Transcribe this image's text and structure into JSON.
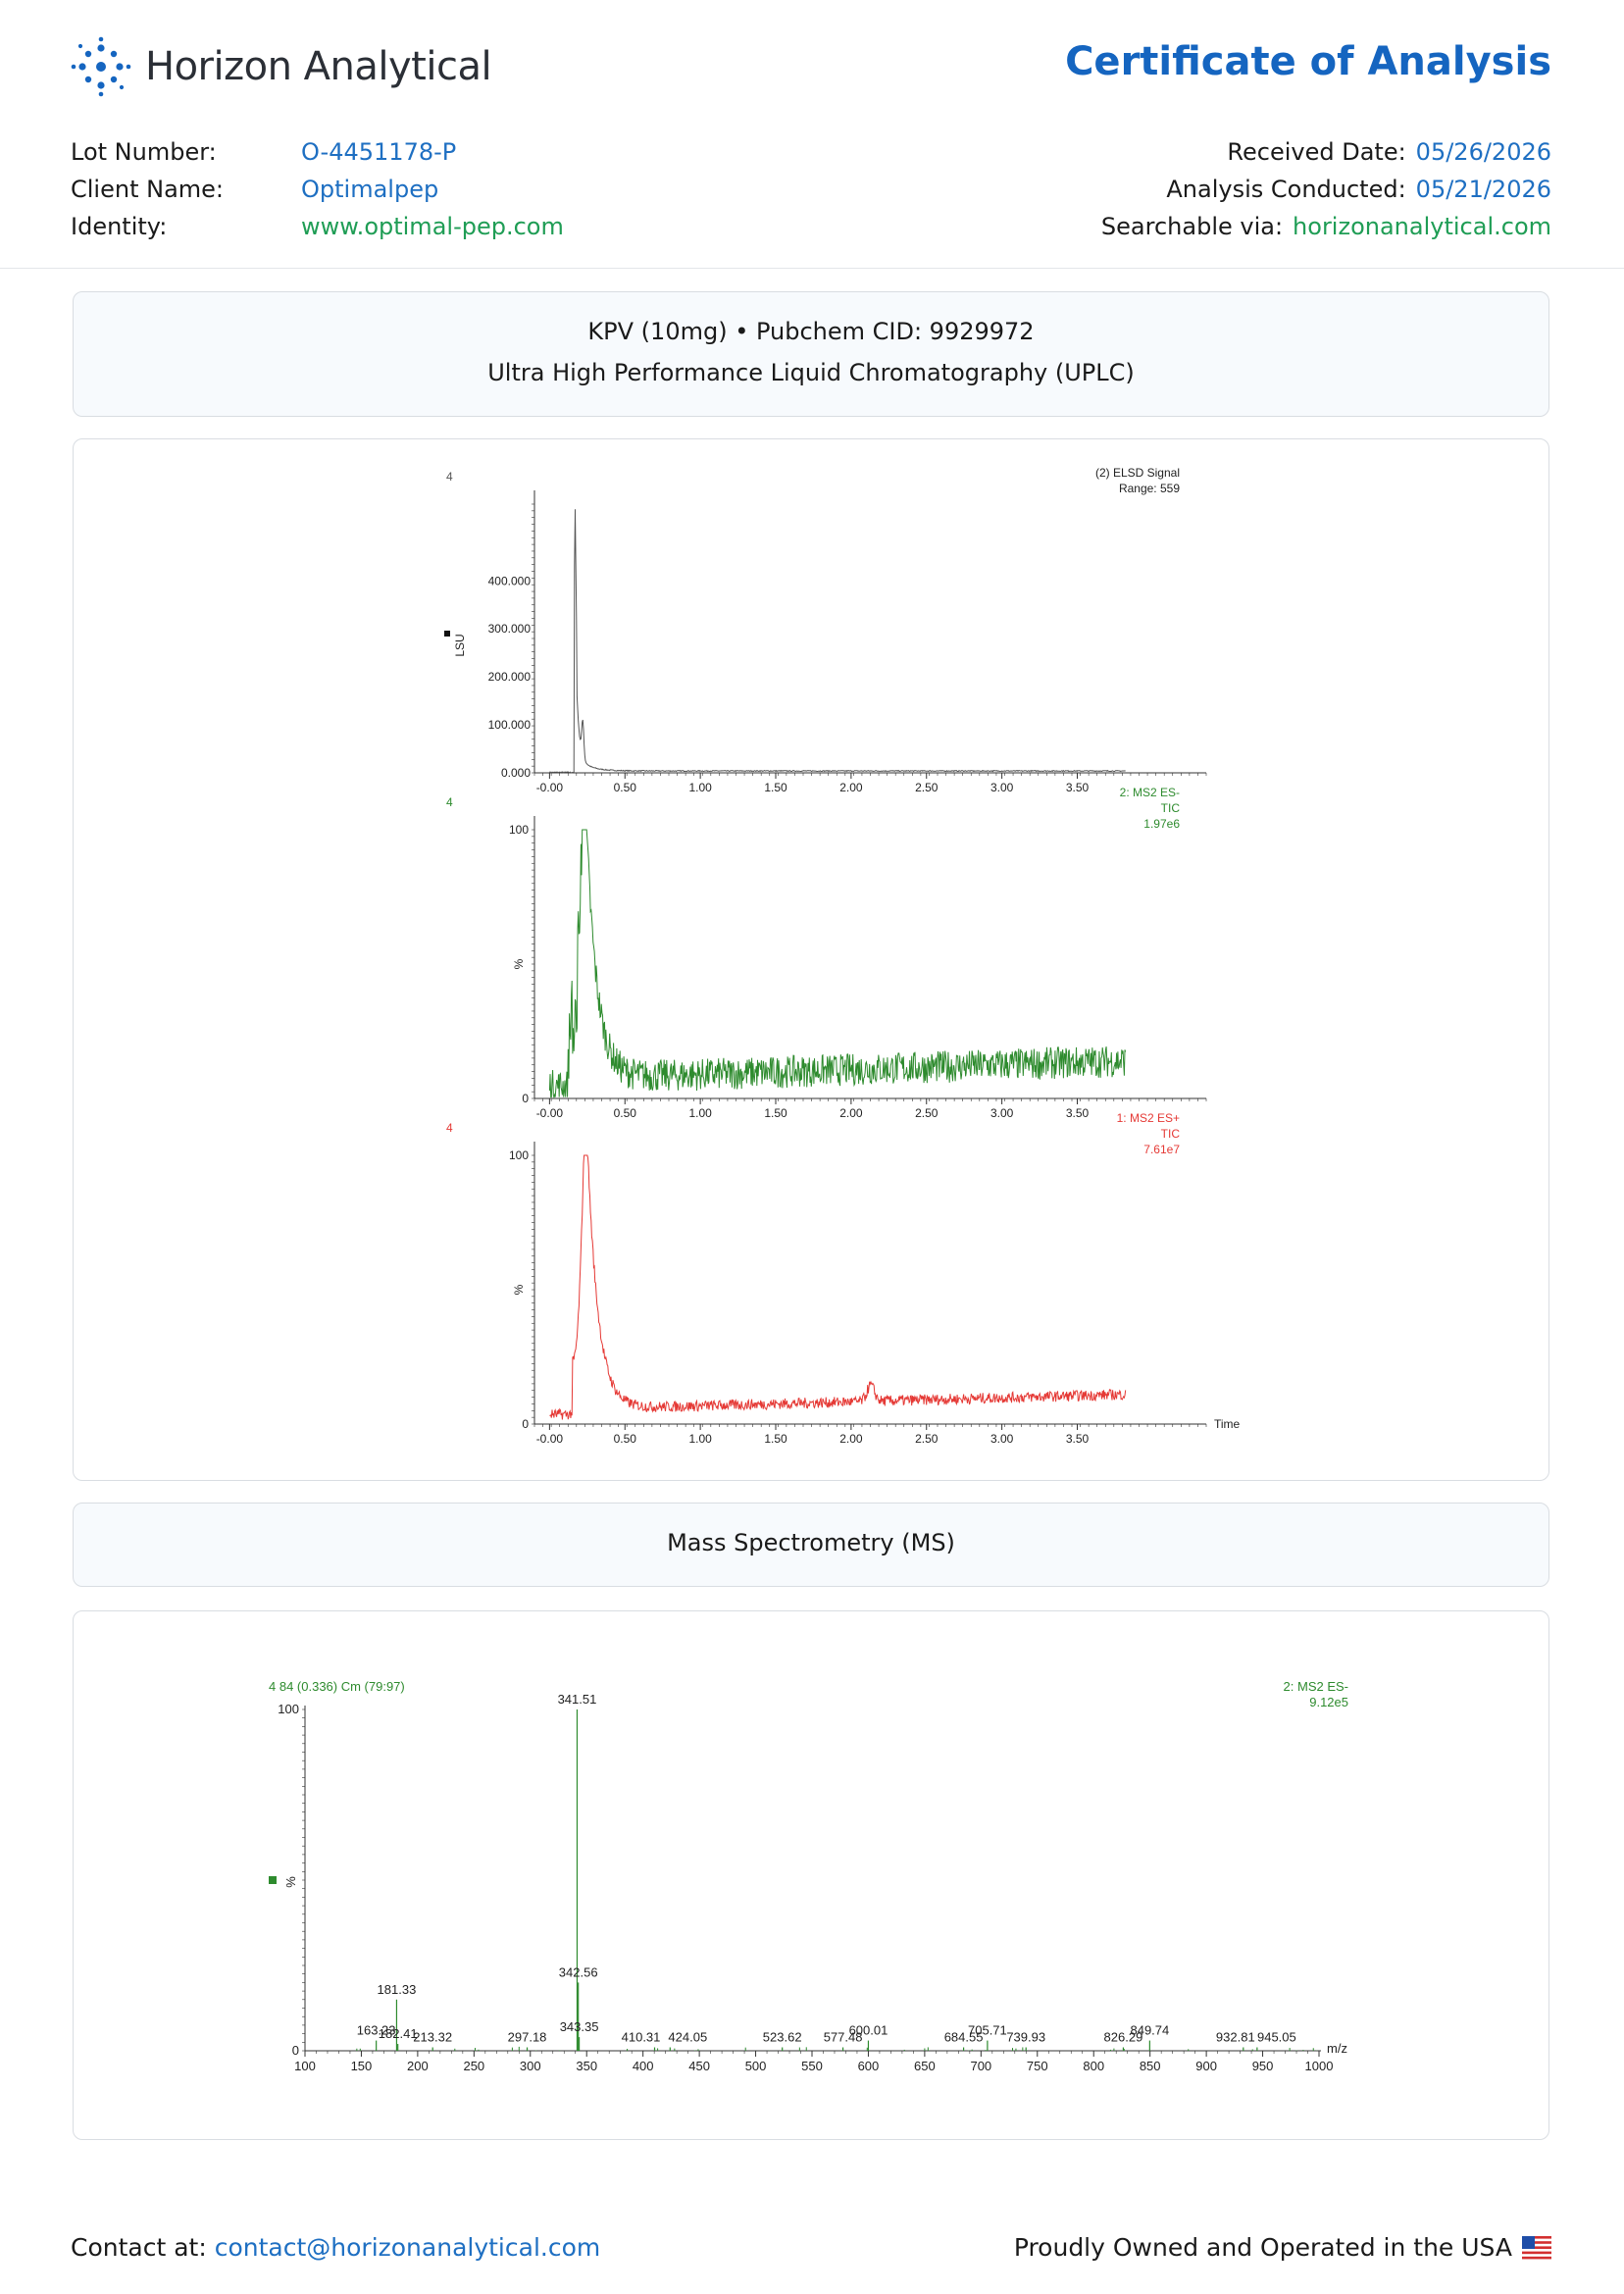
{
  "header": {
    "brand": "Horizon Analytical",
    "doc_title": "Certificate of Analysis"
  },
  "meta_left": [
    {
      "key": "Lot Number:",
      "value": "O-4451178-P",
      "color": "blue"
    },
    {
      "key": "Client Name:",
      "value": "Optimalpep",
      "color": "blue"
    },
    {
      "key": "Identity:",
      "value": "www.optimal-pep.com",
      "color": "green"
    }
  ],
  "meta_right": [
    {
      "key": "Received Date:",
      "value": "05/26/2026",
      "color": "blue"
    },
    {
      "key": "Analysis Conducted:",
      "value": "05/21/2026",
      "color": "blue"
    },
    {
      "key": "Searchable via:",
      "value": "horizonanalytical.com",
      "color": "green"
    }
  ],
  "uplc_section": {
    "line1": "KPV (10mg) • Pubchem CID: 9929972",
    "line2": "Ultra High Performance Liquid Chromatography (UPLC)"
  },
  "ms_section": {
    "title": "Mass Spectrometry (MS)"
  },
  "colors": {
    "brand_blue": "#1565c0",
    "value_blue": "#1e6fc2",
    "value_green": "#1f9d55",
    "elsd_trace": "#555555",
    "es_minus_trace": "#2e8b2e",
    "es_plus_trace": "#e53935"
  },
  "chart_data": [
    {
      "type": "line",
      "panel_label": "4",
      "legend": [
        "(2) ELSD Signal",
        "Range: 559"
      ],
      "ylabel": "LSU",
      "yticks": [
        "0.000",
        "100.000",
        "200.000",
        "300.000",
        "400.000"
      ],
      "ylim": [
        0,
        560
      ],
      "xticks": [
        "-0.00",
        "0.50",
        "1.00",
        "1.50",
        "2.00",
        "2.50",
        "3.00",
        "3.50"
      ],
      "xlim": [
        -0.1,
        3.9
      ],
      "peaks": [
        {
          "x": 0.17,
          "y": 555
        },
        {
          "x": 0.22,
          "y": 75
        }
      ],
      "baseline": 4
    },
    {
      "type": "line",
      "panel_label": "4",
      "legend": [
        "2: MS2 ES-",
        "TIC",
        "1.97e6"
      ],
      "ylabel": "%",
      "yticks": [
        "0",
        "100"
      ],
      "ylim": [
        0,
        100
      ],
      "xticks": [
        "-0.00",
        "0.50",
        "1.00",
        "1.50",
        "2.00",
        "2.50",
        "3.00",
        "3.50"
      ],
      "xlim": [
        -0.1,
        3.9
      ],
      "peaks": [
        {
          "x": 0.24,
          "y": 100
        }
      ],
      "noise_baseline": [
        {
          "x": 0.5,
          "y": 8
        },
        {
          "x": 3.8,
          "y": 14
        }
      ]
    },
    {
      "type": "line",
      "panel_label": "4",
      "legend": [
        "1: MS2 ES+",
        "TIC",
        "7.61e7"
      ],
      "ylabel": "%",
      "xlabel": "Time",
      "yticks": [
        "0",
        "100"
      ],
      "ylim": [
        0,
        100
      ],
      "xticks": [
        "-0.00",
        "0.50",
        "1.00",
        "1.50",
        "2.00",
        "2.50",
        "3.00",
        "3.50"
      ],
      "xlim": [
        -0.1,
        3.9
      ],
      "peaks": [
        {
          "x": 0.25,
          "y": 100
        },
        {
          "x": 2.13,
          "y": 15
        }
      ],
      "noise_baseline": [
        {
          "x": 0.5,
          "y": 6
        },
        {
          "x": 3.8,
          "y": 11
        }
      ]
    },
    {
      "type": "bar",
      "header_left": "4 84 (0.336) Cm (79:97)",
      "legend": [
        "2: MS2 ES-",
        "9.12e5"
      ],
      "ylabel": "%",
      "xlabel": "m/z",
      "yticks": [
        "0",
        "100"
      ],
      "ylim": [
        0,
        100
      ],
      "xticks": [
        "100",
        "150",
        "200",
        "250",
        "300",
        "350",
        "400",
        "450",
        "500",
        "550",
        "600",
        "650",
        "700",
        "750",
        "800",
        "850",
        "900",
        "950",
        "1000"
      ],
      "xlim": [
        100,
        1000
      ],
      "peaks": [
        {
          "mz": 163.23,
          "label": "163.23",
          "y": 3
        },
        {
          "mz": 181.33,
          "label": "181.33",
          "y": 15
        },
        {
          "mz": 182.41,
          "label": "182.41",
          "y": 2
        },
        {
          "mz": 213.32,
          "label": "213.32",
          "y": 1
        },
        {
          "mz": 297.18,
          "label": "297.18",
          "y": 1
        },
        {
          "mz": 341.51,
          "label": "341.51",
          "y": 100
        },
        {
          "mz": 342.56,
          "label": "342.56",
          "y": 20
        },
        {
          "mz": 343.35,
          "label": "343.35",
          "y": 4
        },
        {
          "mz": 410.31,
          "label": "410.31",
          "y": 1
        },
        {
          "mz": 424.05,
          "label": "424.05",
          "y": 1
        },
        {
          "mz": 523.62,
          "label": "523.62",
          "y": 1
        },
        {
          "mz": 577.48,
          "label": "577.48",
          "y": 1
        },
        {
          "mz": 600.01,
          "label": "600.01",
          "y": 3
        },
        {
          "mz": 684.55,
          "label": "684.55",
          "y": 1
        },
        {
          "mz": 705.71,
          "label": "705.71",
          "y": 3
        },
        {
          "mz": 739.93,
          "label": "739.93",
          "y": 1
        },
        {
          "mz": 826.29,
          "label": "826.29",
          "y": 1
        },
        {
          "mz": 849.74,
          "label": "849.74",
          "y": 3
        },
        {
          "mz": 932.81,
          "label": "932.81",
          "y": 1
        },
        {
          "mz": 945.05,
          "label": "945.05",
          "y": 1
        }
      ]
    }
  ],
  "footer": {
    "contact_label": "Contact at:",
    "contact_email": "contact@horizonanalytical.com",
    "tagline": "Proudly Owned and Operated in the USA"
  }
}
